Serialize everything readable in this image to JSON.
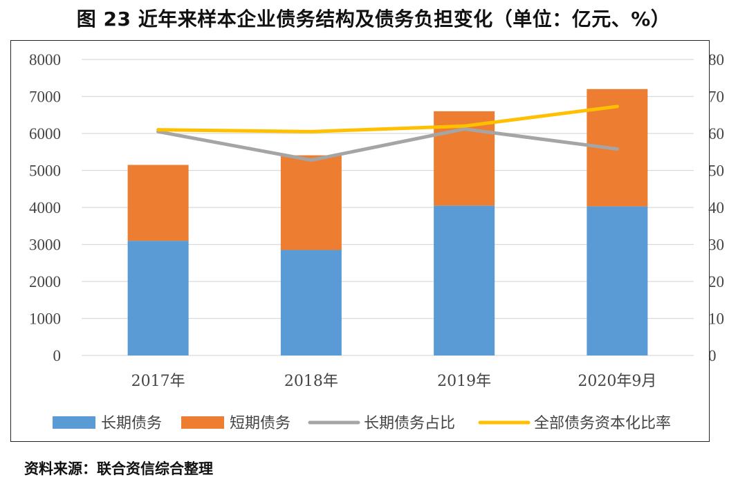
{
  "title": "图 23  近年来样本企业债务结构及债务负担变化（单位：亿元、%）",
  "source": "资料来源：联合资信综合整理",
  "colors": {
    "long_debt": "#5b9bd5",
    "short_debt": "#ed7d31",
    "long_ratio": "#a5a5a5",
    "capital_ratio": "#ffc000",
    "grid": "#d9d9d9"
  },
  "chart_data": {
    "type": "bar",
    "stacked": true,
    "categories": [
      "2017年",
      "2018年",
      "2019年",
      "2020年9月"
    ],
    "series": [
      {
        "name": "长期债务",
        "kind": "bar",
        "axis": "left",
        "values": [
          3100,
          2850,
          4050,
          4030
        ]
      },
      {
        "name": "短期债务",
        "kind": "bar",
        "axis": "left",
        "values": [
          2050,
          2560,
          2550,
          3170
        ]
      },
      {
        "name": "长期债务占比",
        "kind": "line",
        "axis": "right",
        "values": [
          60.5,
          52.8,
          61.2,
          55.8
        ]
      },
      {
        "name": "全部债务资本化比率",
        "kind": "line",
        "axis": "right",
        "values": [
          61.0,
          60.5,
          62.0,
          67.3
        ]
      }
    ],
    "left_axis": {
      "min": 0,
      "max": 8000,
      "ticks": [
        "0",
        "1000",
        "2000",
        "3000",
        "4000",
        "5000",
        "6000",
        "7000",
        "8000"
      ]
    },
    "right_axis": {
      "min": 0,
      "max": 80,
      "ticks": [
        "0",
        "10",
        "20",
        "30",
        "40",
        "50",
        "60",
        "70",
        "80"
      ]
    },
    "grid": true,
    "legend_position": "bottom"
  }
}
